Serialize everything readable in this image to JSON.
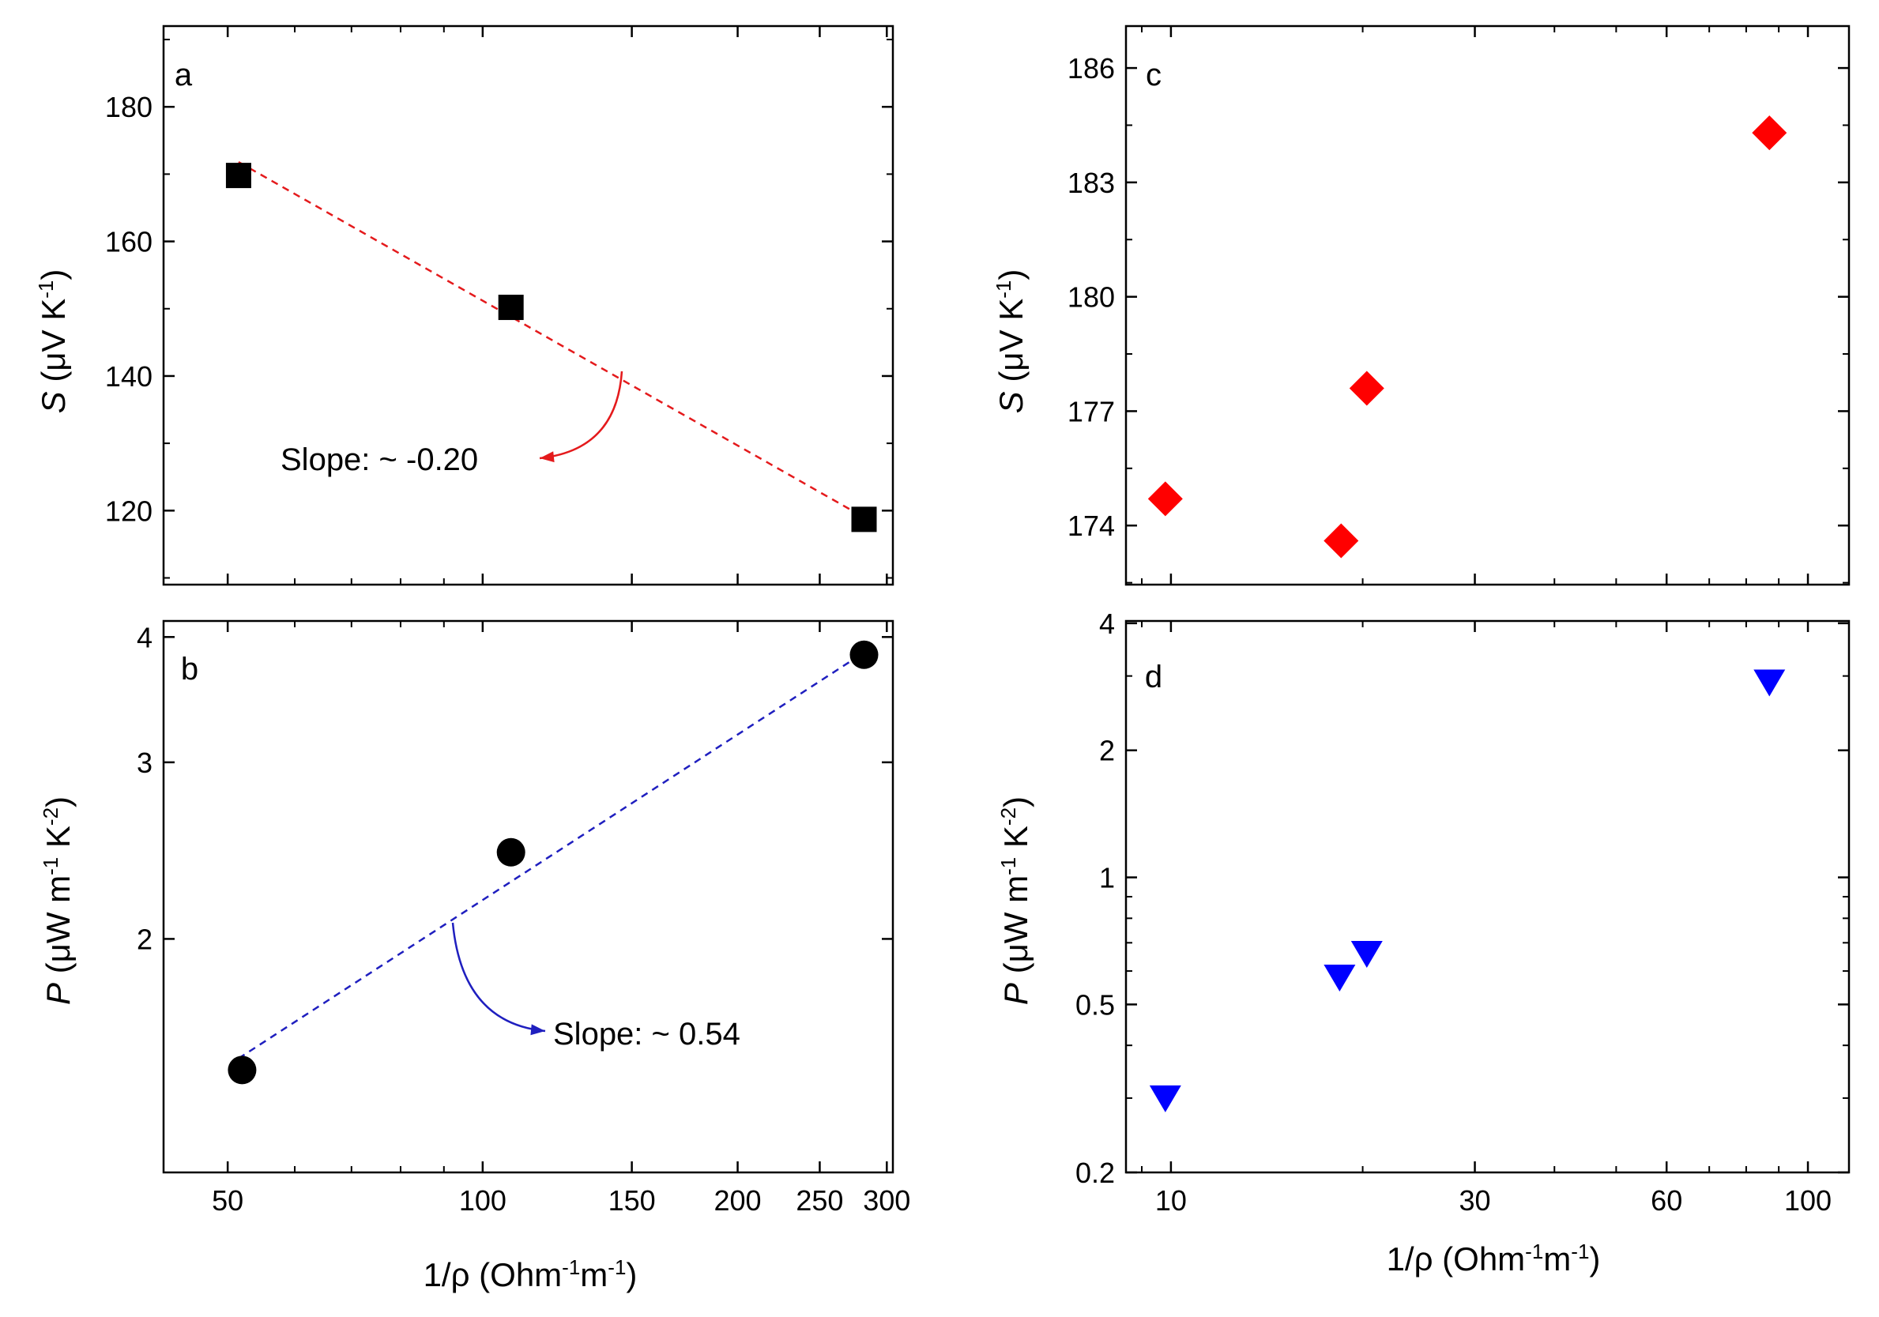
{
  "chart_data": [
    {
      "id": "a",
      "type": "scatter",
      "panel_label": "a",
      "xscale": "log",
      "yscale": "linear",
      "xlim": [
        42,
        305
      ],
      "ylim": [
        109,
        192
      ],
      "xticks": [
        50,
        100,
        150,
        200,
        250,
        300
      ],
      "xticklabels": [
        "50",
        "100",
        "150",
        "200",
        "250",
        "300"
      ],
      "yticks": [
        120,
        140,
        160,
        180
      ],
      "yticklabels": [
        "120",
        "140",
        "160",
        "180"
      ],
      "ylabel": {
        "symbol": "S",
        "unit": "(μV K",
        "exp": "-1",
        "close": ")"
      },
      "xlabel": "",
      "series": [
        {
          "name": "S",
          "marker": "square",
          "color": "#000000",
          "x": [
            51.5,
            108,
            282
          ],
          "y": [
            169.8,
            150.2,
            118.7
          ]
        }
      ],
      "fit": {
        "color": "#e41a1c",
        "x": [
          51.5,
          282
        ],
        "y": [
          171.8,
          119.0
        ]
      },
      "annotation": {
        "text": "Slope: ~ -0.20",
        "color": "#e41a1c"
      }
    },
    {
      "id": "b",
      "type": "scatter",
      "panel_label": "b",
      "xscale": "log",
      "yscale": "log",
      "xlim": [
        42,
        305
      ],
      "ylim": [
        1.17,
        4.15
      ],
      "xticks": [
        50,
        100,
        150,
        200,
        250,
        300
      ],
      "xticklabels": [
        "50",
        "100",
        "150",
        "200",
        "250",
        "300"
      ],
      "yticks": [
        2,
        3,
        4
      ],
      "yticklabels": [
        "2",
        "3",
        "4"
      ],
      "ylabel": {
        "symbol": "P",
        "unit": "(μW m",
        "exp1": "-1",
        "mid": " K",
        "exp2": "-2",
        "close": ")"
      },
      "xlabel": {
        "main": "1/ρ (Ohm",
        "exp1": "-1",
        "mid": "m",
        "exp2": "-1",
        "close": ")"
      },
      "series": [
        {
          "name": "P",
          "marker": "circle",
          "color": "#000000",
          "x": [
            52,
            108,
            282
          ],
          "y": [
            1.48,
            2.44,
            3.84
          ]
        }
      ],
      "fit": {
        "color": "#1f1fbf",
        "x": [
          51.5,
          282
        ],
        "y": [
          1.52,
          3.86
        ]
      },
      "annotation": {
        "text": "Slope: ~ 0.54",
        "color": "#1f1fbf"
      }
    },
    {
      "id": "c",
      "type": "scatter",
      "panel_label": "c",
      "xscale": "log",
      "yscale": "linear",
      "xlim": [
        8.5,
        116
      ],
      "ylim": [
        172.45,
        187.1
      ],
      "xticks": [
        10,
        30,
        60,
        100
      ],
      "xticklabels": [
        "10",
        "30",
        "60",
        "100"
      ],
      "yticks": [
        174,
        177,
        180,
        183,
        186
      ],
      "yticklabels": [
        "174",
        "177",
        "180",
        "183",
        "186"
      ],
      "ylabel": {
        "symbol": "S",
        "unit": "(μV K",
        "exp": "-1",
        "close": ")"
      },
      "xlabel": "",
      "series": [
        {
          "name": "S",
          "marker": "diamond",
          "color": "#ff0000",
          "x": [
            9.8,
            18.5,
            20.3,
            87
          ],
          "y": [
            174.7,
            173.6,
            177.6,
            184.3
          ]
        }
      ]
    },
    {
      "id": "d",
      "type": "scatter",
      "panel_label": "d",
      "xscale": "log",
      "yscale": "log",
      "xlim": [
        8.5,
        116
      ],
      "ylim": [
        0.2,
        4.05
      ],
      "xticks": [
        10,
        30,
        60,
        100
      ],
      "xticklabels": [
        "10",
        "30",
        "60",
        "100"
      ],
      "yticks": [
        0.2,
        0.5,
        1,
        2,
        4
      ],
      "yticklabels": [
        "0.2",
        "0.5",
        "1",
        "2",
        "4"
      ],
      "ylabel": {
        "symbol": "P",
        "unit": "(μW m",
        "exp1": "-1",
        "mid": " K",
        "exp2": "-2",
        "close": ")"
      },
      "xlabel": {
        "main": "1/ρ (Ohm",
        "exp1": "-1",
        "mid": "m",
        "exp2": "-1",
        "close": ")"
      },
      "series": [
        {
          "name": "P",
          "marker": "triangle-down",
          "color": "#0000ff",
          "x": [
            9.8,
            18.4,
            20.3,
            87
          ],
          "y": [
            0.3,
            0.58,
            0.66,
            2.9
          ]
        }
      ]
    }
  ]
}
